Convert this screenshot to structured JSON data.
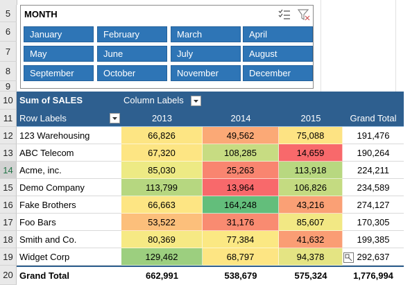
{
  "row_headers": [
    "5",
    "6",
    "7",
    "8",
    "9",
    "10",
    "11",
    "12",
    "13",
    "14",
    "15",
    "16",
    "17",
    "18",
    "19",
    "20"
  ],
  "slicer": {
    "title": "MONTH",
    "buttons": [
      "January",
      "February",
      "March",
      "April",
      "May",
      "June",
      "July",
      "August",
      "September",
      "October",
      "November",
      "December"
    ],
    "icons": [
      "multi-select-icon",
      "clear-filter-icon"
    ]
  },
  "pivot": {
    "value_header": "Sum of SALES",
    "column_labels": "Column Labels",
    "row_labels": "Row Labels",
    "columns": [
      "2013",
      "2014",
      "2015",
      "Grand Total"
    ],
    "rows": [
      {
        "label": "123 Warehousing",
        "v": [
          "66,826",
          "49,562",
          "75,088",
          "191,476"
        ],
        "c": [
          "#fde583",
          "#fba976",
          "#fde383"
        ]
      },
      {
        "label": "ABC Telecom",
        "v": [
          "67,320",
          "108,285",
          "14,659",
          "190,264"
        ],
        "c": [
          "#fde583",
          "#c7dc82",
          "#f8696b"
        ]
      },
      {
        "label": "Acme, inc.",
        "v": [
          "85,030",
          "25,263",
          "113,918",
          "224,211"
        ],
        "c": [
          "#edea84",
          "#f98570",
          "#b8d880"
        ]
      },
      {
        "label": "Demo Company",
        "v": [
          "113,799",
          "13,964",
          "106,826",
          "234,589"
        ],
        "c": [
          "#b6d780",
          "#f8696b",
          "#c4db81"
        ]
      },
      {
        "label": "Fake Brothers",
        "v": [
          "66,663",
          "164,248",
          "43,216",
          "274,127"
        ],
        "c": [
          "#fde583",
          "#63be7b",
          "#faa075"
        ]
      },
      {
        "label": "Foo Bars",
        "v": [
          "53,522",
          "31,176",
          "85,607",
          "170,305"
        ],
        "c": [
          "#fcbf7b",
          "#f98b71",
          "#f2e884"
        ]
      },
      {
        "label": "Smith and Co.",
        "v": [
          "80,369",
          "77,384",
          "41,632",
          "199,385"
        ],
        "c": [
          "#f6e984",
          "#fbe883",
          "#fa9d74"
        ]
      },
      {
        "label": "Widget Corp",
        "v": [
          "129,462",
          "68,797",
          "94,378",
          "292,637"
        ],
        "c": [
          "#9ccf7f",
          "#fde583",
          "#e4e483"
        ]
      }
    ],
    "grand_total_label": "Grand Total",
    "grand_totals": [
      "662,991",
      "538,679",
      "575,324",
      "1,776,994"
    ]
  }
}
